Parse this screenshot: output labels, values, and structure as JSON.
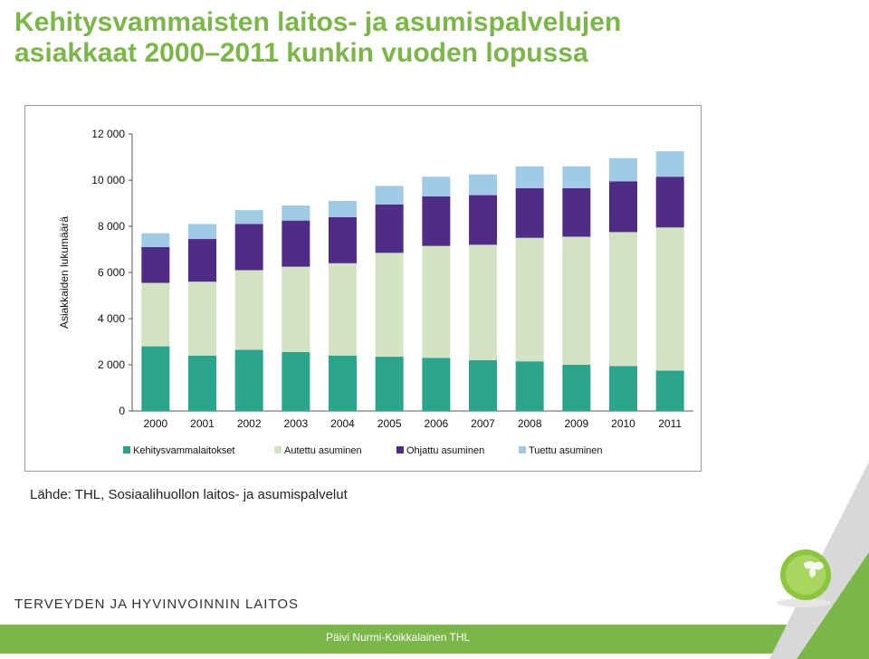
{
  "slide": {
    "title_line1": "Kehitysvammaisten laitos- ja asumispalvelujen",
    "title_line2": "asiakkaat 2000–2011 kunkin vuoden lopussa",
    "source": "Lähde: THL, Sosiaalihuollon laitos- ja asumispalvelut",
    "org_name": "TERVEYDEN JA HYVINVOINNIN LAITOS",
    "footer_text": "Päivi Nurmi-Koikkalainen THL"
  },
  "colors": {
    "accent": "#7ab648",
    "kehitysvammalaitokset": "#2aa58c",
    "autettu": "#d2e3c3",
    "ohjattu": "#4f2d86",
    "tuettu": "#9fcbe4"
  },
  "chart_data": {
    "type": "bar",
    "stacked": true,
    "categories": [
      "2000",
      "2001",
      "2002",
      "2003",
      "2004",
      "2005",
      "2006",
      "2007",
      "2008",
      "2009",
      "2010",
      "2011"
    ],
    "series": [
      {
        "name": "Kehitysvammalaitokset",
        "values": [
          2800,
          2400,
          2650,
          2550,
          2400,
          2350,
          2300,
          2200,
          2150,
          2000,
          1950,
          1750
        ]
      },
      {
        "name": "Autettu asuminen",
        "values": [
          2750,
          3200,
          3450,
          3700,
          4000,
          4500,
          4850,
          5000,
          5350,
          5550,
          5800,
          6200
        ]
      },
      {
        "name": "Ohjattu asuminen",
        "values": [
          1550,
          1850,
          2000,
          2000,
          2000,
          2100,
          2150,
          2150,
          2150,
          2100,
          2200,
          2200
        ]
      },
      {
        "name": "Tuettu asuminen",
        "values": [
          600,
          650,
          600,
          650,
          700,
          800,
          850,
          900,
          950,
          950,
          1000,
          1100
        ]
      }
    ],
    "ylabel": "Asiakkaiden lukumäärä",
    "xlabel": "",
    "ylim": [
      0,
      12000
    ],
    "yticks": [
      0,
      2000,
      4000,
      6000,
      8000,
      10000,
      12000
    ],
    "ytick_labels": [
      "0",
      "2 000",
      "4 000",
      "6 000",
      "8 000",
      "10 000",
      "12 000"
    ],
    "grid": false,
    "legend_position": "bottom"
  }
}
